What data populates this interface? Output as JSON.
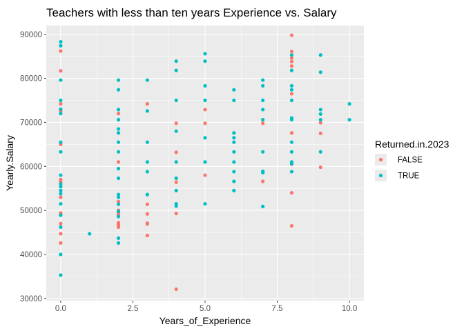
{
  "chart_data": {
    "type": "scatter",
    "title": "Teachers with less than ten years Experience vs. Salary",
    "xlabel": "Years_of_Experience",
    "ylabel": "Yearly.Salary",
    "xlim": [
      -0.5,
      10.5
    ],
    "ylim": [
      29500,
      92000
    ],
    "x_ticks": [
      0,
      2.5,
      5,
      7.5,
      10
    ],
    "x_tick_labels": [
      "0.0",
      "2.5",
      "5.0",
      "7.5",
      "10.0"
    ],
    "y_ticks": [
      30000,
      40000,
      50000,
      60000,
      70000,
      80000,
      90000
    ],
    "y_tick_labels": [
      "30000",
      "40000",
      "50000",
      "60000",
      "70000",
      "80000",
      "90000"
    ],
    "grid": true,
    "background": "#ebebeb",
    "legend": {
      "title": "Returned.in.2023",
      "position": "right"
    },
    "series": [
      {
        "name": "FALSE",
        "color": "#f8766d",
        "points": [
          [
            0,
            86200
          ],
          [
            0,
            81700
          ],
          [
            0,
            74200
          ],
          [
            0,
            72600
          ],
          [
            0,
            65000
          ],
          [
            0,
            57000
          ],
          [
            0,
            56500
          ],
          [
            0,
            53000
          ],
          [
            0,
            49400
          ],
          [
            0,
            47000
          ],
          [
            0,
            44700
          ],
          [
            0,
            42600
          ],
          [
            2,
            72000
          ],
          [
            2,
            61000
          ],
          [
            2,
            52000
          ],
          [
            2,
            50000
          ],
          [
            2,
            49400
          ],
          [
            2,
            49000
          ],
          [
            2,
            47200
          ],
          [
            2,
            46800
          ],
          [
            2,
            46500
          ],
          [
            2,
            46200
          ],
          [
            3,
            74200
          ],
          [
            3,
            51400
          ],
          [
            3,
            49200
          ],
          [
            3,
            47100
          ],
          [
            3,
            46900
          ],
          [
            3,
            44300
          ],
          [
            4,
            69800
          ],
          [
            4,
            63200
          ],
          [
            4,
            56400
          ],
          [
            4,
            49300
          ],
          [
            4,
            32100
          ],
          [
            5,
            72900
          ],
          [
            5,
            69800
          ],
          [
            5,
            58000
          ],
          [
            7,
            69800
          ],
          [
            7,
            56600
          ],
          [
            8,
            89800
          ],
          [
            8,
            86100
          ],
          [
            8,
            84600
          ],
          [
            8,
            83800
          ],
          [
            8,
            82800
          ],
          [
            8,
            76500
          ],
          [
            8,
            67600
          ],
          [
            8,
            60500
          ],
          [
            8,
            54000
          ],
          [
            8,
            46500
          ],
          [
            9,
            69900
          ],
          [
            9,
            67500
          ],
          [
            9,
            59800
          ]
        ]
      },
      {
        "name": "TRUE",
        "color": "#00bfc4",
        "points": [
          [
            0,
            88300
          ],
          [
            0,
            87400
          ],
          [
            0,
            79600
          ],
          [
            0,
            75000
          ],
          [
            0,
            73000
          ],
          [
            0,
            72000
          ],
          [
            0,
            65500
          ],
          [
            0,
            63300
          ],
          [
            0,
            58000
          ],
          [
            0,
            56000
          ],
          [
            0,
            55400
          ],
          [
            0,
            54500
          ],
          [
            0,
            53800
          ],
          [
            0,
            51500
          ],
          [
            0,
            48900
          ],
          [
            0,
            46200
          ],
          [
            0,
            40000
          ],
          [
            0,
            35300
          ],
          [
            1,
            44700
          ],
          [
            2,
            79600
          ],
          [
            2,
            77400
          ],
          [
            2,
            72900
          ],
          [
            2,
            70600
          ],
          [
            2,
            68500
          ],
          [
            2,
            67600
          ],
          [
            2,
            65500
          ],
          [
            2,
            63300
          ],
          [
            2,
            59500
          ],
          [
            2,
            57300
          ],
          [
            2,
            53600
          ],
          [
            2,
            53000
          ],
          [
            2,
            51400
          ],
          [
            2,
            49800
          ],
          [
            2,
            48600
          ],
          [
            2,
            43700
          ],
          [
            2,
            42600
          ],
          [
            3,
            79600
          ],
          [
            3,
            72600
          ],
          [
            3,
            65500
          ],
          [
            3,
            61000
          ],
          [
            3,
            58800
          ],
          [
            3,
            53600
          ],
          [
            4,
            83900
          ],
          [
            4,
            81800
          ],
          [
            4,
            75000
          ],
          [
            4,
            68000
          ],
          [
            4,
            61000
          ],
          [
            4,
            57300
          ],
          [
            4,
            54500
          ],
          [
            4,
            51500
          ],
          [
            4,
            51000
          ],
          [
            5,
            85600
          ],
          [
            5,
            83900
          ],
          [
            5,
            78300
          ],
          [
            5,
            75000
          ],
          [
            5,
            66500
          ],
          [
            5,
            61000
          ],
          [
            5,
            51500
          ],
          [
            6,
            77400
          ],
          [
            6,
            75000
          ],
          [
            6,
            67600
          ],
          [
            6,
            66500
          ],
          [
            6,
            65500
          ],
          [
            6,
            63300
          ],
          [
            6,
            61000
          ],
          [
            6,
            58800
          ],
          [
            6,
            56600
          ],
          [
            6,
            54500
          ],
          [
            7,
            79600
          ],
          [
            7,
            78300
          ],
          [
            7,
            75000
          ],
          [
            7,
            72900
          ],
          [
            7,
            70600
          ],
          [
            7,
            63300
          ],
          [
            7,
            58900
          ],
          [
            7,
            58600
          ],
          [
            7,
            50900
          ],
          [
            8,
            85300
          ],
          [
            8,
            81800
          ],
          [
            8,
            78300
          ],
          [
            8,
            77400
          ],
          [
            8,
            75000
          ],
          [
            8,
            71000
          ],
          [
            8,
            70600
          ],
          [
            8,
            65500
          ],
          [
            8,
            63300
          ],
          [
            8,
            61000
          ],
          [
            8,
            60600
          ],
          [
            8,
            58800
          ],
          [
            9,
            85300
          ],
          [
            9,
            81400
          ],
          [
            9,
            72900
          ],
          [
            9,
            71900
          ],
          [
            9,
            70600
          ],
          [
            9,
            63300
          ],
          [
            10,
            74200
          ],
          [
            10,
            70600
          ]
        ]
      }
    ]
  }
}
